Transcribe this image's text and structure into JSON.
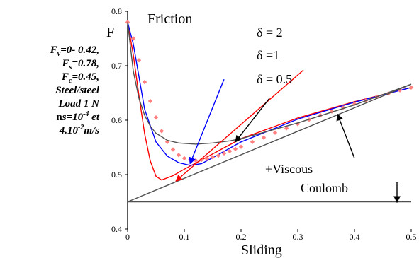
{
  "side_note": {
    "lines": [
      {
        "pre": "F",
        "sub": "v",
        "post": "=0- 0.42,"
      },
      {
        "pre": "F",
        "sub": "s",
        "post": "=0.78,"
      },
      {
        "pre": "F",
        "sub": "c",
        "post": "=0.45,"
      },
      {
        "pre": "Steel/steel"
      },
      {
        "pre": "Load  1 N"
      },
      {
        "pre": "n",
        "bold_pre": true,
        "post": "s=10",
        "sup": "-4",
        "post2": " et"
      },
      {
        "pre": "4.10",
        "sup": "-2",
        "post": "m/s"
      }
    ]
  },
  "chart_data": {
    "type": "line",
    "title": "Friction",
    "ylabel": "F",
    "xlabel": "Sliding",
    "xlim": [
      0,
      0.5
    ],
    "ylim": [
      0.4,
      0.8
    ],
    "xticks": [
      "0",
      "0.1",
      "0.2",
      "0.3",
      "0.4",
      "0.5"
    ],
    "yticks": [
      "0.4",
      "0.5",
      "0.6",
      "0.7",
      "0.8"
    ],
    "grid": false,
    "series": [
      {
        "name": "δ = 2",
        "color": "#ff0000",
        "x": [
          0,
          0.01,
          0.02,
          0.03,
          0.04,
          0.05,
          0.06,
          0.08,
          0.1,
          0.15,
          0.2,
          0.3,
          0.4,
          0.5
        ],
        "y": [
          0.78,
          0.72,
          0.645,
          0.575,
          0.525,
          0.497,
          0.49,
          0.498,
          0.51,
          0.538,
          0.566,
          0.604,
          0.634,
          0.66
        ]
      },
      {
        "name": "δ =1",
        "color": "#0000ff",
        "x": [
          0,
          0.01,
          0.02,
          0.03,
          0.05,
          0.07,
          0.09,
          0.11,
          0.13,
          0.15,
          0.2,
          0.3,
          0.4,
          0.5
        ],
        "y": [
          0.78,
          0.74,
          0.68,
          0.62,
          0.56,
          0.534,
          0.522,
          0.517,
          0.52,
          0.531,
          0.56,
          0.602,
          0.633,
          0.66
        ]
      },
      {
        "name": "δ = 0.5",
        "color": "#ff8080",
        "style": "markers",
        "x": [
          0,
          0.01,
          0.02,
          0.03,
          0.04,
          0.05,
          0.06,
          0.07,
          0.08,
          0.09,
          0.1,
          0.11,
          0.12,
          0.13,
          0.14,
          0.15,
          0.16,
          0.17,
          0.18,
          0.19,
          0.2,
          0.22,
          0.24,
          0.26,
          0.28,
          0.3,
          0.32,
          0.34,
          0.36,
          0.38,
          0.4,
          0.42,
          0.44,
          0.46,
          0.48,
          0.5
        ],
        "y": [
          0.78,
          0.75,
          0.71,
          0.67,
          0.635,
          0.605,
          0.58,
          0.56,
          0.546,
          0.536,
          0.53,
          0.527,
          0.526,
          0.527,
          0.529,
          0.532,
          0.535,
          0.539,
          0.543,
          0.547,
          0.551,
          0.56,
          0.568,
          0.577,
          0.585,
          0.593,
          0.601,
          0.609,
          0.616,
          0.623,
          0.63,
          0.636,
          0.643,
          0.649,
          0.655,
          0.66
        ]
      },
      {
        "name": "",
        "color": "#505050",
        "x": [
          0,
          0.01,
          0.02,
          0.03,
          0.04,
          0.05,
          0.07,
          0.09,
          0.12,
          0.15,
          0.18,
          0.2,
          0.3,
          0.4,
          0.5
        ],
        "y": [
          0.78,
          0.69,
          0.64,
          0.609,
          0.589,
          0.576,
          0.563,
          0.558,
          0.556,
          0.558,
          0.562,
          0.566,
          0.595,
          0.628,
          0.666
        ]
      },
      {
        "name": "+Viscous",
        "color": "#505050",
        "x": [
          0,
          0.5
        ],
        "y": [
          0.45,
          0.666
        ]
      },
      {
        "name": "Coulomb",
        "color": "#505050",
        "x": [
          0,
          0.5
        ],
        "y": [
          0.45,
          0.45
        ]
      }
    ],
    "annotations": [
      {
        "text": "δ = 2",
        "color": "#ff0000",
        "arrow_tail": [
          0.31,
          0.692
        ],
        "arrow_head": [
          0.085,
          0.488
        ]
      },
      {
        "text": "δ =1",
        "color": "#0000ff",
        "arrow_tail": [
          0.17,
          0.675
        ],
        "arrow_head": [
          0.11,
          0.52
        ]
      },
      {
        "text": "δ = 0.5",
        "color": "#000000",
        "arrow_tail": [
          0.25,
          0.64
        ],
        "arrow_head": [
          0.19,
          0.56
        ]
      },
      {
        "text": "+Viscous",
        "color": "#000000",
        "arrow_tail": [
          0.4,
          0.53
        ],
        "arrow_head": [
          0.37,
          0.611
        ]
      },
      {
        "text": "Coulomb",
        "color": "#000000",
        "arrow_tail": [
          0.475,
          0.487
        ],
        "arrow_head": [
          0.475,
          0.449
        ]
      }
    ]
  }
}
